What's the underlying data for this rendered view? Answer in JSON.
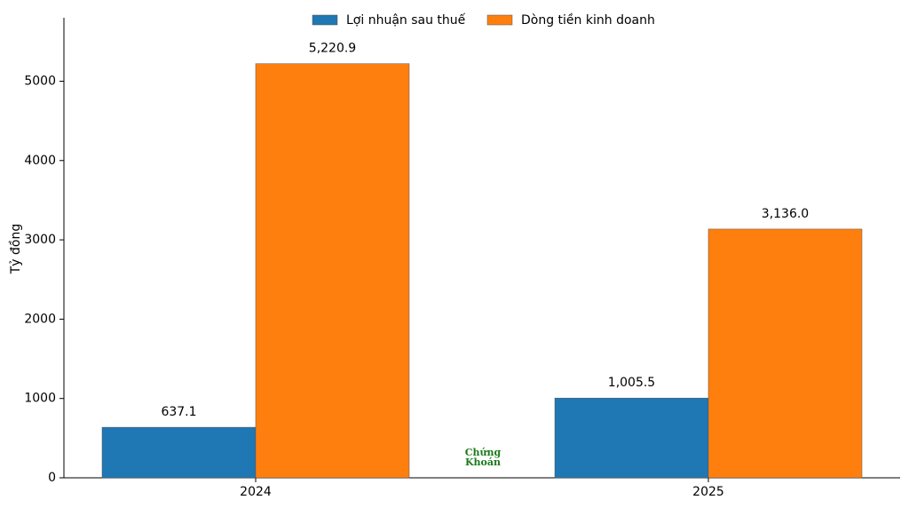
{
  "chart_data": {
    "type": "bar",
    "y_label": "Tỷ đồng",
    "categories": [
      "2024",
      "2025"
    ],
    "series": [
      {
        "name": "Lợi nhuận sau thuế",
        "color": "#1f77b4",
        "values": [
          637.1,
          1005.5
        ],
        "value_labels": [
          "637.1",
          "1,005.5"
        ]
      },
      {
        "name": "Dòng tiền kinh doanh",
        "color": "#ff7f0e",
        "values": [
          5220.9,
          3136.0
        ],
        "value_labels": [
          "5,220.9",
          "3,136.0"
        ]
      }
    ],
    "ylim": [
      0,
      5800
    ],
    "yticks": [
      0,
      1000,
      2000,
      3000,
      4000,
      5000
    ],
    "legend": "top",
    "watermark": [
      "Chứng",
      "Khoán"
    ]
  }
}
